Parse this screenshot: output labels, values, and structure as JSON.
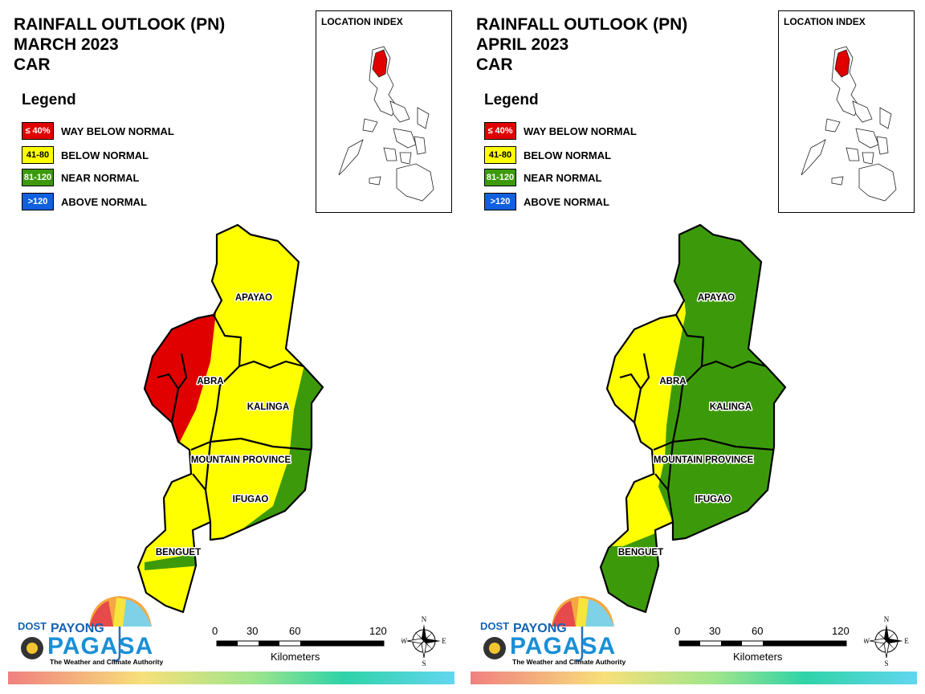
{
  "panels": [
    {
      "title_lines": [
        "RAINFALL OUTLOOK (PN)",
        "MARCH 2023",
        "CAR"
      ],
      "provinces": {
        "apayao": {
          "label": "APAYAO"
        },
        "abra": {
          "label": "ABRA"
        },
        "kalinga": {
          "label": "KALINGA"
        },
        "mountain": {
          "label": "MOUNTAIN PROVINCE"
        },
        "ifugao": {
          "label": "IFUGAO"
        },
        "benguet": {
          "label": "BENGUET"
        }
      },
      "dominant_category": "41-80",
      "west_category": "≤ 40%",
      "east_category": "81-120"
    },
    {
      "title_lines": [
        "RAINFALL OUTLOOK (PN)",
        "APRIL 2023",
        "CAR"
      ],
      "provinces": {
        "apayao": {
          "label": "APAYAO"
        },
        "abra": {
          "label": "ABRA"
        },
        "kalinga": {
          "label": "KALINGA"
        },
        "mountain": {
          "label": "MOUNTAIN PROVINCE"
        },
        "ifugao": {
          "label": "IFUGAO"
        },
        "benguet": {
          "label": "BENGUET"
        }
      },
      "dominant_category": "81-120",
      "west_category": "41-80"
    }
  ],
  "legend": {
    "title": "Legend",
    "items": [
      {
        "range": "≤ 40%",
        "label": "WAY BELOW NORMAL",
        "color": "#e00000",
        "text_color": "#ffffff"
      },
      {
        "range": "41-80",
        "label": "BELOW NORMAL",
        "color": "#ffff00",
        "text_color": "#000000"
      },
      {
        "range": "81-120",
        "label": "NEAR NORMAL",
        "color": "#3c9a0a",
        "text_color": "#ffffff"
      },
      {
        "range": ">120",
        "label": "ABOVE NORMAL",
        "color": "#1060e0",
        "text_color": "#ffffff"
      }
    ]
  },
  "inset": {
    "title": "LOCATION INDEX",
    "highlight_color": "#e00000"
  },
  "scale": {
    "ticks": [
      "0",
      "30",
      "60",
      "120"
    ],
    "unit": "Kilometers"
  },
  "compass": {
    "n": "N",
    "s": "S",
    "e": "E",
    "w": "W"
  },
  "logo": {
    "dost": "DOST",
    "payong": "PAYONG",
    "pagasa": "PAGASA",
    "tagline": "The Weather and Climate Authority"
  },
  "colors": {
    "yellow": "#ffff00",
    "green": "#3c9a0a",
    "red": "#e00000",
    "outline": "#000000"
  }
}
